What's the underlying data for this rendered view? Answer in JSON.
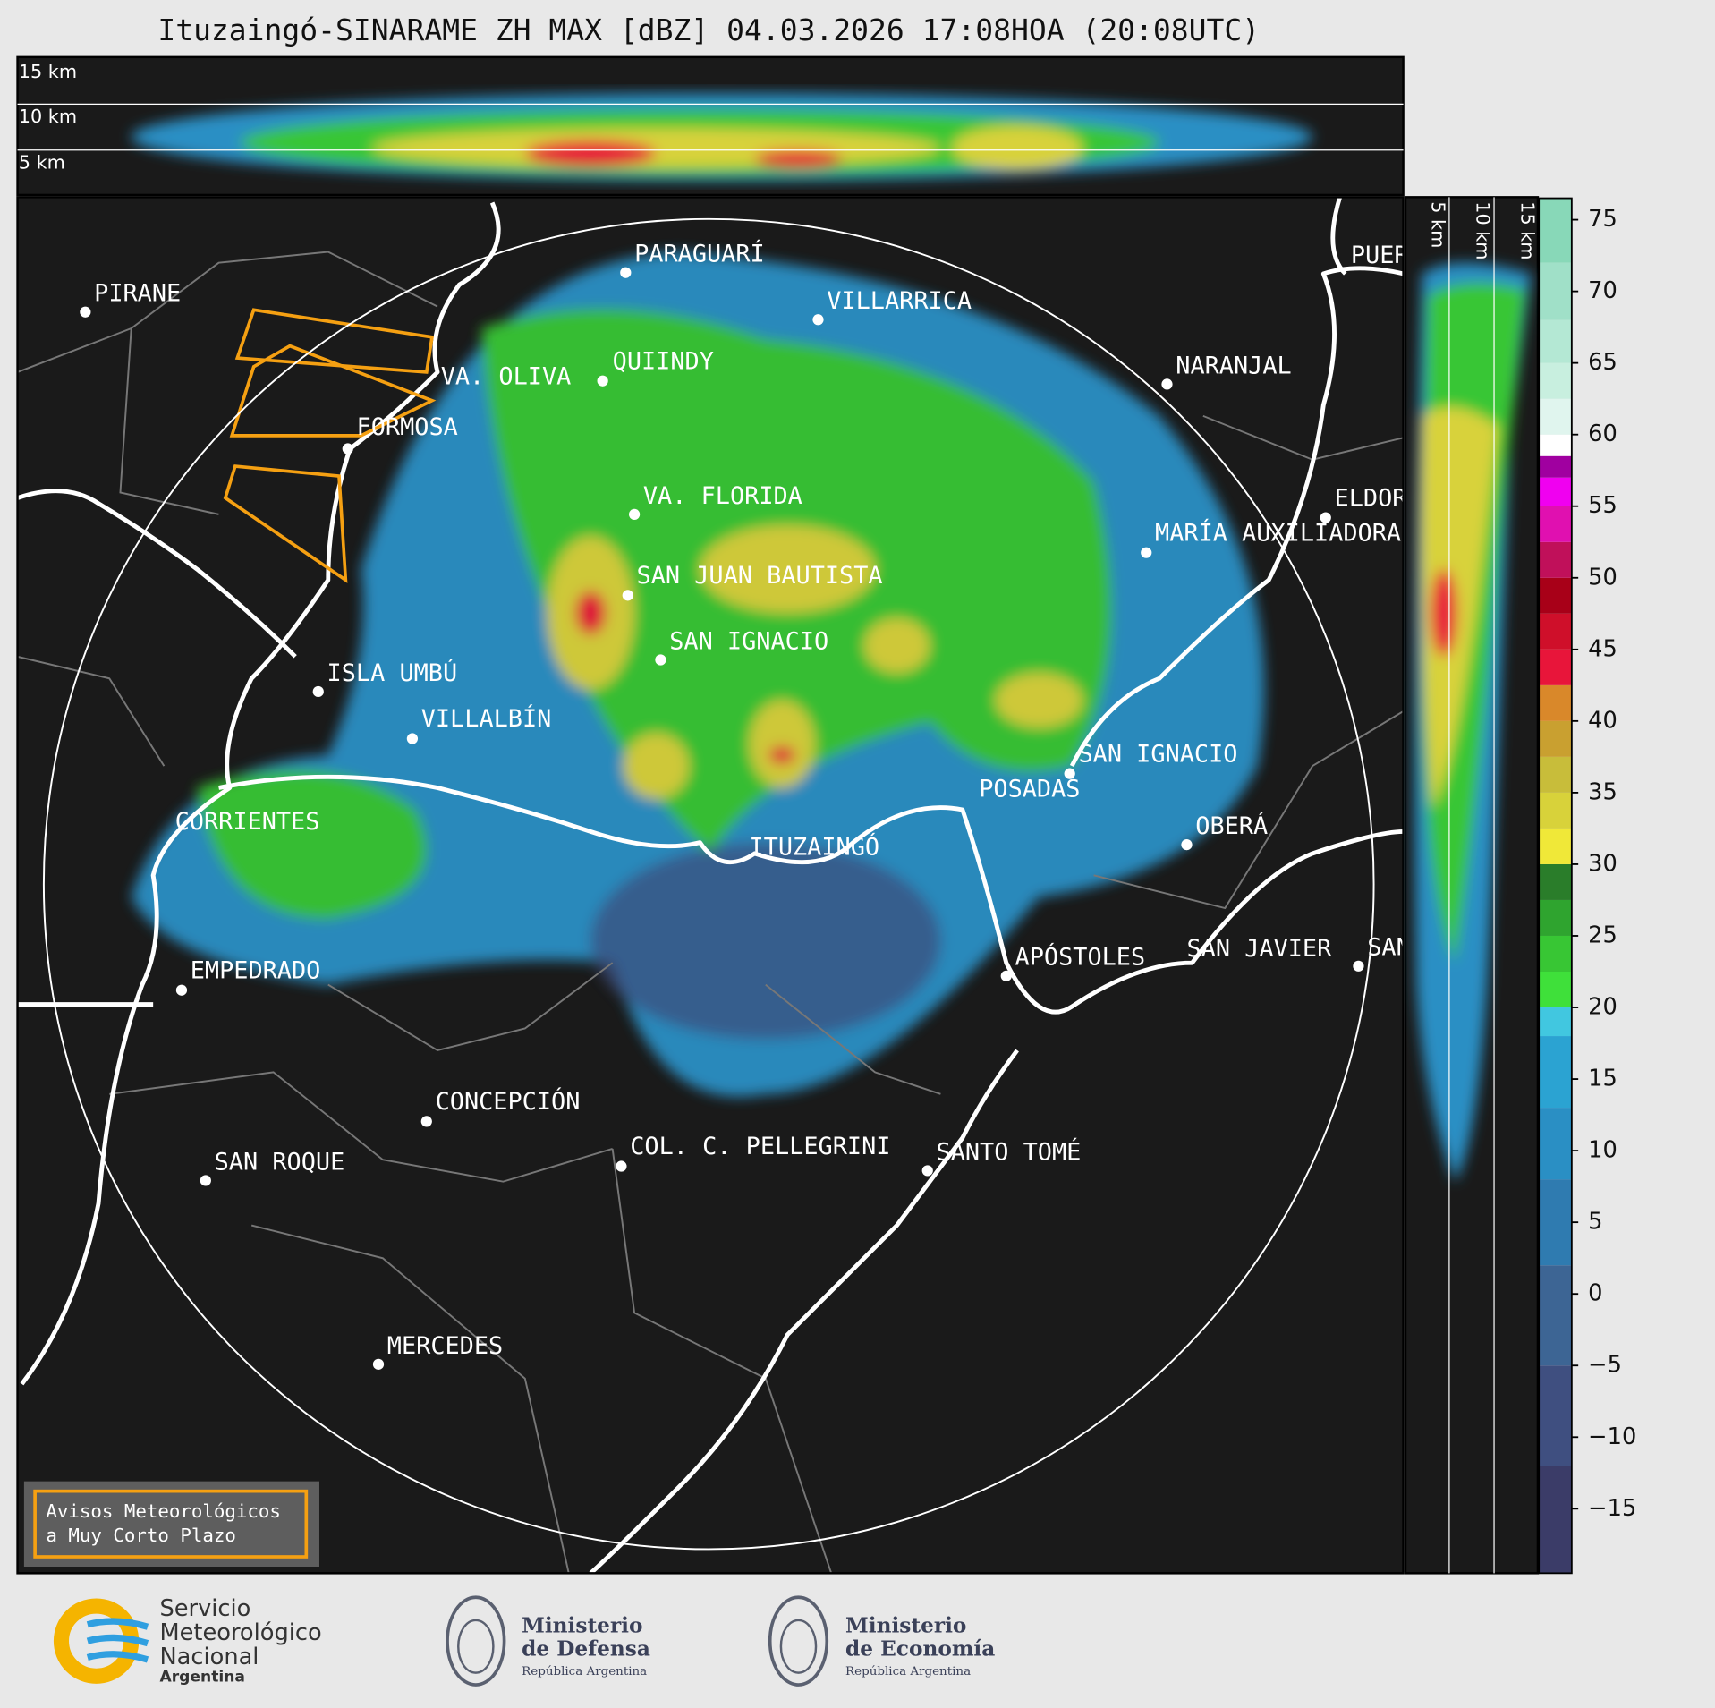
{
  "title": "Ituzaingó-SINARAME ZH MAX [dBZ] 04.03.2026 17:08HOA (20:08UTC)",
  "top_section": {
    "height_labels": [
      "15 km",
      "10 km",
      "5 km"
    ]
  },
  "side_section": {
    "height_labels": [
      "5 km",
      "10 km",
      "15 km"
    ]
  },
  "colorbar": {
    "range": [
      -19.5,
      76.5
    ],
    "ticks": [
      75,
      70,
      65,
      60,
      55,
      50,
      45,
      40,
      35,
      30,
      25,
      20,
      15,
      10,
      5,
      0,
      {
        "value": -5,
        "label": "−5"
      },
      {
        "value": -10,
        "label": "−10"
      },
      {
        "value": -15,
        "label": "−15"
      }
    ],
    "bands": [
      {
        "from": -19.5,
        "color": "#3b3c68"
      },
      {
        "from": -12,
        "color": "#3f4f80"
      },
      {
        "from": -5,
        "color": "#3d6594"
      },
      {
        "from": 2,
        "color": "#2f7bb0"
      },
      {
        "from": 8,
        "color": "#2a8fc4"
      },
      {
        "from": 13,
        "color": "#2ba3d2"
      },
      {
        "from": 18,
        "color": "#41c7e0"
      },
      {
        "from": 20,
        "color": "#3fe03a"
      },
      {
        "from": 22.5,
        "color": "#38c634"
      },
      {
        "from": 25,
        "color": "#2fa42f"
      },
      {
        "from": 27.5,
        "color": "#2a7d2a"
      },
      {
        "from": 30,
        "color": "#f0e838"
      },
      {
        "from": 32.5,
        "color": "#d8d23a"
      },
      {
        "from": 35,
        "color": "#c8bd3a"
      },
      {
        "from": 37.5,
        "color": "#c9a030"
      },
      {
        "from": 40,
        "color": "#d9882a"
      },
      {
        "from": 42.5,
        "color": "#e8153a"
      },
      {
        "from": 45,
        "color": "#cf0f2a"
      },
      {
        "from": 47.5,
        "color": "#a80018"
      },
      {
        "from": 50,
        "color": "#c0105a"
      },
      {
        "from": 52.5,
        "color": "#e010b0"
      },
      {
        "from": 55,
        "color": "#f000f0"
      },
      {
        "from": 57,
        "color": "#a000a0"
      },
      {
        "from": 58.5,
        "color": "#ffffff"
      },
      {
        "from": 60,
        "color": "#e0f5ee"
      },
      {
        "from": 62.5,
        "color": "#c8efdf"
      },
      {
        "from": 65,
        "color": "#b4e8d4"
      },
      {
        "from": 68,
        "color": "#a0e0c8"
      },
      {
        "from": 72,
        "color": "#88d8b8"
      }
    ]
  },
  "cities": [
    "PIRANE",
    "PARAGUARÍ",
    "VILLARRICA",
    "QUIINDY",
    "VA. OLIVA",
    "NARANJAL",
    "FORMOSA",
    "VA. FLORIDA",
    "ELDORADO",
    "MARÍA AUXILIADORA",
    "SAN JUAN BAUTISTA",
    "SAN IGNACIO",
    "ISLA UMBÚ",
    "VILLALBÍN",
    "SAN IGNACIO",
    "POSADAS",
    "CORRIENTES",
    "OBERÁ",
    "ITUZAINGÓ",
    "APÓSTOLES",
    "SAN JAVIER",
    "SAN",
    "PUERTO",
    "EMPEDRADO",
    "CONCEPCIÓN",
    "SAN ROQUE",
    "COL. C. PELLEGRINI",
    "SANTO TOMÉ",
    "MERCEDES"
  ],
  "warning_legend": [
    "Avisos Meteorológicos",
    "a Muy Corto Plazo"
  ],
  "logos": {
    "smn": [
      "Servicio",
      "Meteorológico",
      "Nacional",
      "Argentina"
    ],
    "defensa": [
      "Ministerio",
      "de Defensa",
      "República Argentina"
    ],
    "economia": [
      "Ministerio",
      "de Economía",
      "República Argentina"
    ]
  }
}
